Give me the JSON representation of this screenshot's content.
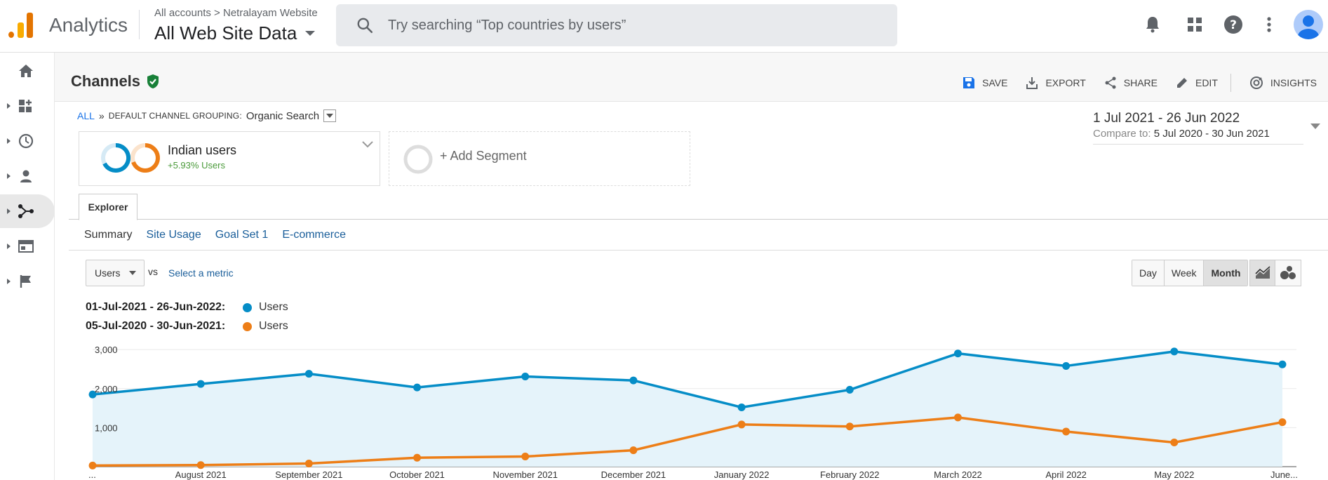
{
  "app": {
    "name": "Analytics",
    "breadcrumb_account": "All accounts",
    "breadcrumb_sep": ">",
    "breadcrumb_property": "Netralayam Website",
    "property_view": "All Web Site Data",
    "search_placeholder": "Try searching “Top countries by users”"
  },
  "topbar_icons": [
    "bell-icon",
    "apps-grid-icon",
    "help-icon",
    "more-vert-icon",
    "account-avatar"
  ],
  "leftnav": [
    "home-icon",
    "customization-icon",
    "realtime-icon",
    "audience-icon",
    "acquisition-icon",
    "behavior-icon",
    "conversions-icon"
  ],
  "header": {
    "title": "Channels",
    "actions": [
      {
        "label": "SAVE",
        "icon": "save-icon"
      },
      {
        "label": "EXPORT",
        "icon": "export-icon"
      },
      {
        "label": "SHARE",
        "icon": "share-icon"
      },
      {
        "label": "EDIT",
        "icon": "edit-icon"
      },
      {
        "label": "INSIGHTS",
        "icon": "insights-icon"
      }
    ]
  },
  "breadcrumb": {
    "all": "ALL",
    "sep": "»",
    "grouping_label": "DEFAULT CHANNEL GROUPING:",
    "grouping_value": "Organic Search"
  },
  "segments": {
    "active_name": "Indian users",
    "active_sub": "+5.93% Users",
    "add_label": "+ Add Segment"
  },
  "daterange": {
    "main": "1 Jul 2021 - 26 Jun 2022",
    "compare_label": "Compare to:",
    "compare_value": "5 Jul 2020 - 30 Jun 2021"
  },
  "tabs": {
    "explorer": "Explorer",
    "subtabs": [
      "Summary",
      "Site Usage",
      "Goal Set 1",
      "E-commerce"
    ]
  },
  "metrics": {
    "primary": "Users",
    "vs": "VS",
    "select": "Select a metric",
    "granularity": [
      "Day",
      "Week",
      "Month"
    ],
    "granularity_selected": "Month"
  },
  "legend": [
    {
      "range": "01-Jul-2021 - 26-Jun-2022:",
      "name": "Users",
      "color": "#058dc7"
    },
    {
      "range": "05-Jul-2020 - 30-Jun-2021:",
      "name": "Users",
      "color": "#ed7e17"
    }
  ],
  "chart_data": {
    "type": "line",
    "x": [
      "...",
      "August 2021",
      "September 2021",
      "October 2021",
      "November 2021",
      "December 2021",
      "January 2022",
      "February 2022",
      "March 2022",
      "April 2022",
      "May 2022",
      "June..."
    ],
    "series": [
      {
        "name": "Users",
        "color": "#058dc7",
        "values": [
          1850,
          2120,
          2380,
          2030,
          2310,
          2210,
          1520,
          1970,
          2900,
          2580,
          2950,
          2620
        ]
      },
      {
        "name": "Users",
        "color": "#ed7e17",
        "values": [
          30,
          40,
          80,
          230,
          260,
          420,
          1080,
          1030,
          1260,
          900,
          620,
          1140
        ]
      }
    ],
    "yticks": [
      "1,000",
      "2,000",
      "3,000"
    ],
    "ylim": [
      0,
      3200
    ],
    "area_under_first_series": true
  }
}
